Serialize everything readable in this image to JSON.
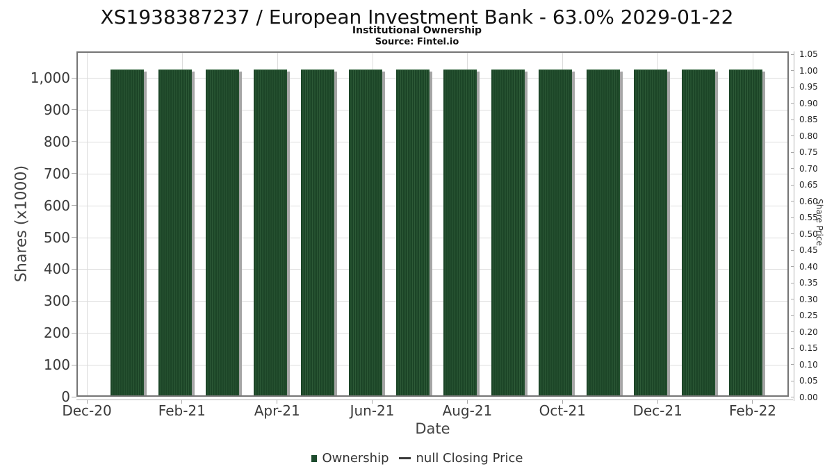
{
  "chart": {
    "title": "XS1938387237 / European Investment Bank - 63.0% 2029-01-22",
    "subtitle": "Institutional Ownership",
    "source": "Source: Fintel.io"
  },
  "chart_data": {
    "type": "bar",
    "title": "XS1938387237 / European Investment Bank - 63.0% 2029-01-22",
    "subtitle": "Institutional Ownership",
    "source": "Source: Fintel.io",
    "categories": [
      "Jan-21",
      "Feb-21",
      "Mar-21",
      "Apr-21",
      "May-21",
      "Jun-21",
      "Jul-21",
      "Aug-21",
      "Sep-21",
      "Oct-21",
      "Nov-21",
      "Dec-21",
      "Jan-22",
      "Feb-22"
    ],
    "series": [
      {
        "name": "Ownership",
        "type": "bar",
        "color": "#1c4527",
        "values": [
          1027,
          1027,
          1027,
          1027,
          1027,
          1027,
          1027,
          1027,
          1027,
          1027,
          1027,
          1027,
          1027,
          1027
        ]
      },
      {
        "name": "null Closing Price",
        "type": "line",
        "color": "#3a3a3a",
        "values": []
      }
    ],
    "x_axis": {
      "label": "Date",
      "tick_labels": [
        "Dec-20",
        "Feb-21",
        "Apr-21",
        "Jun-21",
        "Aug-21",
        "Oct-21",
        "Dec-21",
        "Feb-22"
      ]
    },
    "y_axis_left": {
      "label": "Shares (x1000)",
      "range": [
        0,
        1083
      ],
      "ticks": [
        {
          "label": "0",
          "value": 0
        },
        {
          "label": "100",
          "value": 100
        },
        {
          "label": "200",
          "value": 200
        },
        {
          "label": "300",
          "value": 300
        },
        {
          "label": "400",
          "value": 400
        },
        {
          "label": "500",
          "value": 500
        },
        {
          "label": "600",
          "value": 600
        },
        {
          "label": "700",
          "value": 700
        },
        {
          "label": "800",
          "value": 800
        },
        {
          "label": "900",
          "value": 900
        },
        {
          "label": "1,000",
          "value": 1000
        }
      ]
    },
    "y_axis_right": {
      "label": "Share Price",
      "range": [
        0,
        1.05
      ],
      "ticks": [
        {
          "label": "0.00",
          "value": 0.0
        },
        {
          "label": "0.05",
          "value": 0.05
        },
        {
          "label": "0.10",
          "value": 0.1
        },
        {
          "label": "0.15",
          "value": 0.15
        },
        {
          "label": "0.20",
          "value": 0.2
        },
        {
          "label": "0.25",
          "value": 0.25
        },
        {
          "label": "0.30",
          "value": 0.3
        },
        {
          "label": "0.35",
          "value": 0.35
        },
        {
          "label": "0.40",
          "value": 0.4
        },
        {
          "label": "0.45",
          "value": 0.45
        },
        {
          "label": "0.50",
          "value": 0.5
        },
        {
          "label": "0.55",
          "value": 0.55
        },
        {
          "label": "0.60",
          "value": 0.6
        },
        {
          "label": "0.65",
          "value": 0.65
        },
        {
          "label": "0.70",
          "value": 0.7
        },
        {
          "label": "0.75",
          "value": 0.75
        },
        {
          "label": "0.80",
          "value": 0.8
        },
        {
          "label": "0.85",
          "value": 0.85
        },
        {
          "label": "0.90",
          "value": 0.9
        },
        {
          "label": "0.95",
          "value": 0.95
        },
        {
          "label": "1.00",
          "value": 1.0
        },
        {
          "label": "1.05",
          "value": 1.05
        }
      ]
    },
    "grid": true,
    "legend_position": "bottom-center"
  },
  "legend": {
    "items": [
      {
        "marker": "bar",
        "label": "Ownership"
      },
      {
        "marker": "line",
        "label": "null Closing Price"
      }
    ]
  },
  "colors": {
    "bar_fill": "#1c4527",
    "bar_stripe": "#2d5a37",
    "bar_shadow": "#a6a6a6",
    "plot_border": "#757575",
    "gridline": "#dcdcdc",
    "axis_line": "#b0b0b0",
    "tick_text": "#3a3a3a",
    "background": "#ffffff"
  }
}
